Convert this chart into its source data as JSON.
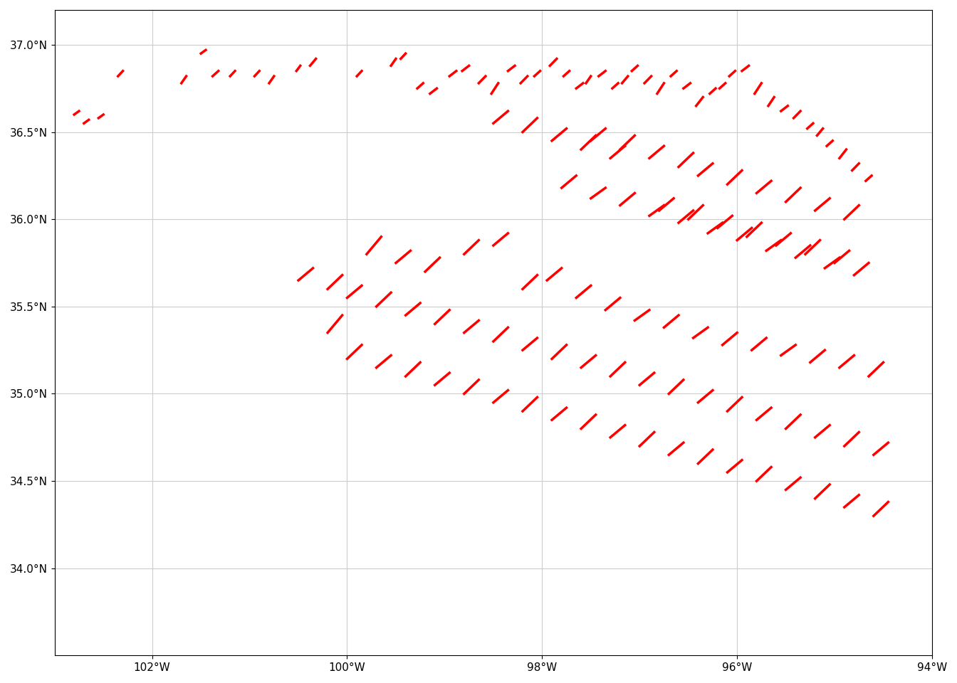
{
  "xlim": [
    -103.0,
    -94.0
  ],
  "ylim": [
    33.5,
    37.2
  ],
  "xticks": [
    -102,
    -100,
    -98,
    -96,
    -94
  ],
  "yticks": [
    34.0,
    34.5,
    35.0,
    35.5,
    36.0,
    36.5,
    37.0
  ],
  "background_color": "#ffffff",
  "grid_color": "#cccccc",
  "county_edge_color": "#333333",
  "county_face_color": "#f5f5f5",
  "tornado_color": "#ff0000",
  "tornado_linewidth": 2.5,
  "tornado_paths": [
    [
      [
        -102.8,
        36.6
      ],
      [
        -102.75,
        36.62
      ]
    ],
    [
      [
        -102.7,
        36.55
      ],
      [
        -102.65,
        36.57
      ]
    ],
    [
      [
        -102.55,
        36.58
      ],
      [
        -102.5,
        36.6
      ]
    ],
    [
      [
        -102.35,
        36.82
      ],
      [
        -102.3,
        36.85
      ]
    ],
    [
      [
        -101.7,
        36.78
      ],
      [
        -101.65,
        36.82
      ]
    ],
    [
      [
        -101.5,
        36.95
      ],
      [
        -101.45,
        36.97
      ]
    ],
    [
      [
        -101.38,
        36.82
      ],
      [
        -101.32,
        36.85
      ]
    ],
    [
      [
        -101.2,
        36.82
      ],
      [
        -101.15,
        36.85
      ]
    ],
    [
      [
        -100.95,
        36.82
      ],
      [
        -100.9,
        36.85
      ]
    ],
    [
      [
        -100.8,
        36.78
      ],
      [
        -100.75,
        36.82
      ]
    ],
    [
      [
        -100.52,
        36.85
      ],
      [
        -100.48,
        36.88
      ]
    ],
    [
      [
        -100.38,
        36.88
      ],
      [
        -100.32,
        36.92
      ]
    ],
    [
      [
        -99.9,
        36.82
      ],
      [
        -99.85,
        36.85
      ]
    ],
    [
      [
        -99.55,
        36.88
      ],
      [
        -99.5,
        36.92
      ]
    ],
    [
      [
        -99.45,
        36.92
      ],
      [
        -99.4,
        36.95
      ]
    ],
    [
      [
        -99.28,
        36.75
      ],
      [
        -99.22,
        36.78
      ]
    ],
    [
      [
        -99.15,
        36.72
      ],
      [
        -99.08,
        36.75
      ]
    ],
    [
      [
        -98.95,
        36.82
      ],
      [
        -98.88,
        36.85
      ]
    ],
    [
      [
        -98.82,
        36.85
      ],
      [
        -98.75,
        36.88
      ]
    ],
    [
      [
        -98.65,
        36.78
      ],
      [
        -98.58,
        36.82
      ]
    ],
    [
      [
        -98.52,
        36.72
      ],
      [
        -98.45,
        36.78
      ]
    ],
    [
      [
        -98.35,
        36.85
      ],
      [
        -98.28,
        36.88
      ]
    ],
    [
      [
        -98.22,
        36.78
      ],
      [
        -98.15,
        36.82
      ]
    ],
    [
      [
        -98.08,
        36.82
      ],
      [
        -98.02,
        36.85
      ]
    ],
    [
      [
        -97.92,
        36.88
      ],
      [
        -97.85,
        36.92
      ]
    ],
    [
      [
        -97.78,
        36.82
      ],
      [
        -97.72,
        36.85
      ]
    ],
    [
      [
        -97.65,
        36.75
      ],
      [
        -97.58,
        36.78
      ]
    ],
    [
      [
        -97.55,
        36.78
      ],
      [
        -97.5,
        36.82
      ]
    ],
    [
      [
        -97.42,
        36.82
      ],
      [
        -97.35,
        36.85
      ]
    ],
    [
      [
        -97.28,
        36.75
      ],
      [
        -97.22,
        36.78
      ]
    ],
    [
      [
        -97.18,
        36.78
      ],
      [
        -97.12,
        36.82
      ]
    ],
    [
      [
        -97.08,
        36.85
      ],
      [
        -97.02,
        36.88
      ]
    ],
    [
      [
        -96.95,
        36.78
      ],
      [
        -96.88,
        36.82
      ]
    ],
    [
      [
        -96.82,
        36.72
      ],
      [
        -96.75,
        36.78
      ]
    ],
    [
      [
        -96.68,
        36.82
      ],
      [
        -96.62,
        36.85
      ]
    ],
    [
      [
        -96.55,
        36.75
      ],
      [
        -96.48,
        36.78
      ]
    ],
    [
      [
        -96.42,
        36.65
      ],
      [
        -96.35,
        36.7
      ]
    ],
    [
      [
        -96.28,
        36.72
      ],
      [
        -96.22,
        36.75
      ]
    ],
    [
      [
        -96.18,
        36.75
      ],
      [
        -96.12,
        36.78
      ]
    ],
    [
      [
        -96.08,
        36.82
      ],
      [
        -96.02,
        36.85
      ]
    ],
    [
      [
        -95.95,
        36.85
      ],
      [
        -95.88,
        36.88
      ]
    ],
    [
      [
        -95.82,
        36.72
      ],
      [
        -95.75,
        36.78
      ]
    ],
    [
      [
        -95.68,
        36.65
      ],
      [
        -95.62,
        36.7
      ]
    ],
    [
      [
        -95.55,
        36.62
      ],
      [
        -95.48,
        36.65
      ]
    ],
    [
      [
        -95.42,
        36.58
      ],
      [
        -95.35,
        36.62
      ]
    ],
    [
      [
        -95.28,
        36.52
      ],
      [
        -95.22,
        36.55
      ]
    ],
    [
      [
        -95.18,
        36.48
      ],
      [
        -95.12,
        36.52
      ]
    ],
    [
      [
        -95.08,
        36.42
      ],
      [
        -95.02,
        36.45
      ]
    ],
    [
      [
        -94.95,
        36.35
      ],
      [
        -94.88,
        36.4
      ]
    ],
    [
      [
        -94.82,
        36.28
      ],
      [
        -94.75,
        36.32
      ]
    ],
    [
      [
        -94.68,
        36.22
      ],
      [
        -94.62,
        36.25
      ]
    ],
    [
      [
        -99.8,
        35.8
      ],
      [
        -99.65,
        35.9
      ]
    ],
    [
      [
        -99.5,
        35.75
      ],
      [
        -99.35,
        35.82
      ]
    ],
    [
      [
        -99.2,
        35.7
      ],
      [
        -99.05,
        35.78
      ]
    ],
    [
      [
        -98.8,
        35.8
      ],
      [
        -98.65,
        35.88
      ]
    ],
    [
      [
        -98.5,
        35.85
      ],
      [
        -98.35,
        35.92
      ]
    ],
    [
      [
        -98.2,
        35.6
      ],
      [
        -98.05,
        35.68
      ]
    ],
    [
      [
        -97.95,
        35.65
      ],
      [
        -97.8,
        35.72
      ]
    ],
    [
      [
        -97.65,
        35.55
      ],
      [
        -97.5,
        35.62
      ]
    ],
    [
      [
        -97.35,
        35.48
      ],
      [
        -97.2,
        35.55
      ]
    ],
    [
      [
        -97.05,
        35.42
      ],
      [
        -96.9,
        35.48
      ]
    ],
    [
      [
        -96.75,
        35.38
      ],
      [
        -96.6,
        35.45
      ]
    ],
    [
      [
        -96.45,
        35.32
      ],
      [
        -96.3,
        35.38
      ]
    ],
    [
      [
        -96.15,
        35.28
      ],
      [
        -96.0,
        35.35
      ]
    ],
    [
      [
        -95.85,
        35.25
      ],
      [
        -95.7,
        35.32
      ]
    ],
    [
      [
        -95.55,
        35.22
      ],
      [
        -95.4,
        35.28
      ]
    ],
    [
      [
        -95.25,
        35.18
      ],
      [
        -95.1,
        35.25
      ]
    ],
    [
      [
        -94.95,
        35.15
      ],
      [
        -94.8,
        35.22
      ]
    ],
    [
      [
        -94.65,
        35.1
      ],
      [
        -94.5,
        35.18
      ]
    ],
    [
      [
        -100.2,
        35.35
      ],
      [
        -100.05,
        35.45
      ]
    ],
    [
      [
        -100.0,
        35.2
      ],
      [
        -99.85,
        35.28
      ]
    ],
    [
      [
        -99.7,
        35.15
      ],
      [
        -99.55,
        35.22
      ]
    ],
    [
      [
        -99.4,
        35.1
      ],
      [
        -99.25,
        35.18
      ]
    ],
    [
      [
        -99.1,
        35.05
      ],
      [
        -98.95,
        35.12
      ]
    ],
    [
      [
        -98.8,
        35.0
      ],
      [
        -98.65,
        35.08
      ]
    ],
    [
      [
        -98.5,
        34.95
      ],
      [
        -98.35,
        35.02
      ]
    ],
    [
      [
        -98.2,
        34.9
      ],
      [
        -98.05,
        34.98
      ]
    ],
    [
      [
        -97.9,
        34.85
      ],
      [
        -97.75,
        34.92
      ]
    ],
    [
      [
        -97.6,
        34.8
      ],
      [
        -97.45,
        34.88
      ]
    ],
    [
      [
        -97.3,
        34.75
      ],
      [
        -97.15,
        34.82
      ]
    ],
    [
      [
        -97.0,
        34.7
      ],
      [
        -96.85,
        34.78
      ]
    ],
    [
      [
        -96.7,
        34.65
      ],
      [
        -96.55,
        34.72
      ]
    ],
    [
      [
        -96.4,
        34.6
      ],
      [
        -96.25,
        34.68
      ]
    ],
    [
      [
        -96.1,
        34.55
      ],
      [
        -95.95,
        34.62
      ]
    ],
    [
      [
        -95.8,
        34.5
      ],
      [
        -95.65,
        34.58
      ]
    ],
    [
      [
        -95.5,
        34.45
      ],
      [
        -95.35,
        34.52
      ]
    ],
    [
      [
        -95.2,
        34.4
      ],
      [
        -95.05,
        34.48
      ]
    ],
    [
      [
        -94.9,
        34.35
      ],
      [
        -94.75,
        34.42
      ]
    ],
    [
      [
        -94.6,
        34.3
      ],
      [
        -94.45,
        34.38
      ]
    ],
    [
      [
        -96.8,
        36.05
      ],
      [
        -96.65,
        36.12
      ]
    ],
    [
      [
        -96.5,
        36.0
      ],
      [
        -96.35,
        36.08
      ]
    ],
    [
      [
        -96.2,
        35.95
      ],
      [
        -96.05,
        36.02
      ]
    ],
    [
      [
        -95.9,
        35.9
      ],
      [
        -95.75,
        35.98
      ]
    ],
    [
      [
        -95.6,
        35.85
      ],
      [
        -95.45,
        35.92
      ]
    ],
    [
      [
        -95.3,
        35.8
      ],
      [
        -95.15,
        35.88
      ]
    ],
    [
      [
        -95.0,
        35.75
      ],
      [
        -94.85,
        35.82
      ]
    ],
    [
      [
        -96.4,
        36.25
      ],
      [
        -96.25,
        36.32
      ]
    ],
    [
      [
        -96.1,
        36.2
      ],
      [
        -95.95,
        36.28
      ]
    ],
    [
      [
        -95.8,
        36.15
      ],
      [
        -95.65,
        36.22
      ]
    ],
    [
      [
        -95.5,
        36.1
      ],
      [
        -95.35,
        36.18
      ]
    ],
    [
      [
        -95.2,
        36.05
      ],
      [
        -95.05,
        36.12
      ]
    ],
    [
      [
        -94.9,
        36.0
      ],
      [
        -94.75,
        36.08
      ]
    ],
    [
      [
        -97.5,
        36.45
      ],
      [
        -97.35,
        36.52
      ]
    ],
    [
      [
        -97.2,
        36.4
      ],
      [
        -97.05,
        36.48
      ]
    ],
    [
      [
        -96.9,
        36.35
      ],
      [
        -96.75,
        36.42
      ]
    ],
    [
      [
        -96.6,
        36.3
      ],
      [
        -96.45,
        36.38
      ]
    ],
    [
      [
        -98.5,
        36.55
      ],
      [
        -98.35,
        36.62
      ]
    ],
    [
      [
        -98.2,
        36.5
      ],
      [
        -98.05,
        36.58
      ]
    ],
    [
      [
        -97.9,
        36.45
      ],
      [
        -97.75,
        36.52
      ]
    ],
    [
      [
        -97.6,
        36.4
      ],
      [
        -97.45,
        36.48
      ]
    ],
    [
      [
        -97.3,
        36.35
      ],
      [
        -97.15,
        36.42
      ]
    ],
    [
      [
        -100.5,
        35.65
      ],
      [
        -100.35,
        35.72
      ]
    ],
    [
      [
        -100.2,
        35.6
      ],
      [
        -100.05,
        35.68
      ]
    ],
    [
      [
        -100.0,
        35.55
      ],
      [
        -99.85,
        35.62
      ]
    ],
    [
      [
        -99.7,
        35.5
      ],
      [
        -99.55,
        35.58
      ]
    ],
    [
      [
        -99.4,
        35.45
      ],
      [
        -99.25,
        35.52
      ]
    ],
    [
      [
        -99.1,
        35.4
      ],
      [
        -98.95,
        35.48
      ]
    ],
    [
      [
        -98.8,
        35.35
      ],
      [
        -98.65,
        35.42
      ]
    ],
    [
      [
        -98.5,
        35.3
      ],
      [
        -98.35,
        35.38
      ]
    ],
    [
      [
        -98.2,
        35.25
      ],
      [
        -98.05,
        35.32
      ]
    ],
    [
      [
        -97.9,
        35.2
      ],
      [
        -97.75,
        35.28
      ]
    ],
    [
      [
        -97.6,
        35.15
      ],
      [
        -97.45,
        35.22
      ]
    ],
    [
      [
        -97.3,
        35.1
      ],
      [
        -97.15,
        35.18
      ]
    ],
    [
      [
        -97.0,
        35.05
      ],
      [
        -96.85,
        35.12
      ]
    ],
    [
      [
        -96.7,
        35.0
      ],
      [
        -96.55,
        35.08
      ]
    ],
    [
      [
        -96.4,
        34.95
      ],
      [
        -96.25,
        35.02
      ]
    ],
    [
      [
        -96.1,
        34.9
      ],
      [
        -95.95,
        34.98
      ]
    ],
    [
      [
        -95.8,
        34.85
      ],
      [
        -95.65,
        34.92
      ]
    ],
    [
      [
        -95.5,
        34.8
      ],
      [
        -95.35,
        34.88
      ]
    ],
    [
      [
        -95.2,
        34.75
      ],
      [
        -95.05,
        34.82
      ]
    ],
    [
      [
        -94.9,
        34.7
      ],
      [
        -94.75,
        34.78
      ]
    ],
    [
      [
        -94.6,
        34.65
      ],
      [
        -94.45,
        34.72
      ]
    ],
    [
      [
        -97.8,
        36.18
      ],
      [
        -97.65,
        36.25
      ]
    ],
    [
      [
        -97.5,
        36.12
      ],
      [
        -97.35,
        36.18
      ]
    ],
    [
      [
        -97.2,
        36.08
      ],
      [
        -97.05,
        36.15
      ]
    ],
    [
      [
        -96.9,
        36.02
      ],
      [
        -96.75,
        36.08
      ]
    ],
    [
      [
        -96.6,
        35.98
      ],
      [
        -96.45,
        36.05
      ]
    ],
    [
      [
        -96.3,
        35.92
      ],
      [
        -96.15,
        35.98
      ]
    ],
    [
      [
        -96.0,
        35.88
      ],
      [
        -95.85,
        35.95
      ]
    ],
    [
      [
        -95.7,
        35.82
      ],
      [
        -95.55,
        35.88
      ]
    ],
    [
      [
        -95.4,
        35.78
      ],
      [
        -95.25,
        35.85
      ]
    ],
    [
      [
        -95.1,
        35.72
      ],
      [
        -94.95,
        35.78
      ]
    ],
    [
      [
        -94.8,
        35.68
      ],
      [
        -94.65,
        35.75
      ]
    ]
  ]
}
